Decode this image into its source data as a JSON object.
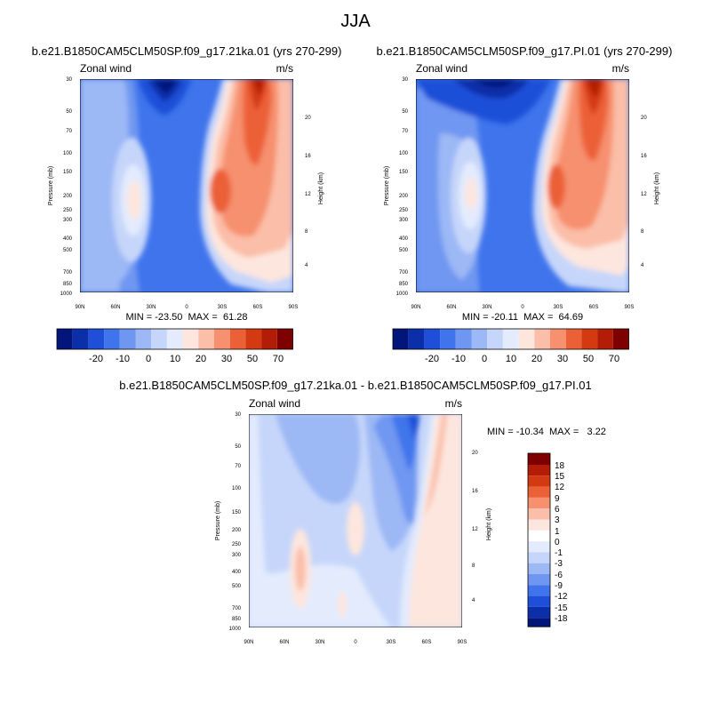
{
  "figure": {
    "title": "JJA"
  },
  "chart_data": [
    {
      "type": "contour",
      "title": "b.e21.B1850CAM5CLM50SP.f09_g17.21ka.01 (yrs 270-299)",
      "left_label": "Zonal wind",
      "right_label": "m/s",
      "ylabel": "Pressure (mb)",
      "ylabel_right": "Height (km)",
      "x_ticks": [
        "90N",
        "60N",
        "30N",
        "0",
        "30S",
        "60S",
        "90S"
      ],
      "y_ticks": [
        "30",
        "50",
        "70",
        "100",
        "150",
        "200",
        "250",
        "300",
        "400",
        "500",
        "700",
        "850",
        "1000"
      ],
      "height_ticks": [
        "4",
        "8",
        "12",
        "16",
        "20"
      ],
      "stats": "MIN = -23.50  MAX =  61.28",
      "stats_min": -23.5,
      "stats_max": 61.28,
      "colorbar_labels": [
        "-20",
        "-10",
        "0",
        "10",
        "20",
        "30",
        "50",
        "70"
      ],
      "jets": [
        {
          "lat": -52,
          "pressure": 40,
          "value": 61
        },
        {
          "lat": -30,
          "pressure": 200,
          "value": 45
        },
        {
          "lat": 45,
          "pressure": 200,
          "value": 20
        }
      ]
    },
    {
      "type": "contour",
      "title": "b.e21.B1850CAM5CLM50SP.f09_g17.PI.01 (yrs 270-299)",
      "left_label": "Zonal wind",
      "right_label": "m/s",
      "ylabel": "Pressure (mb)",
      "ylabel_right": "Height (km)",
      "x_ticks": [
        "90N",
        "60N",
        "30N",
        "0",
        "30S",
        "60S",
        "90S"
      ],
      "y_ticks": [
        "30",
        "50",
        "70",
        "100",
        "150",
        "200",
        "250",
        "300",
        "400",
        "500",
        "700",
        "850",
        "1000"
      ],
      "height_ticks": [
        "4",
        "8",
        "12",
        "16",
        "20"
      ],
      "stats": "MIN = -20.11  MAX =  64.69",
      "stats_min": -20.11,
      "stats_max": 64.69,
      "colorbar_labels": [
        "-20",
        "-10",
        "0",
        "10",
        "20",
        "30",
        "50",
        "70"
      ],
      "jets": [
        {
          "lat": -55,
          "pressure": 35,
          "value": 64
        },
        {
          "lat": -30,
          "pressure": 200,
          "value": 40
        },
        {
          "lat": 45,
          "pressure": 200,
          "value": 20
        }
      ]
    },
    {
      "type": "contour",
      "title": "b.e21.B1850CAM5CLM50SP.f09_g17.21ka.01 - b.e21.B1850CAM5CLM50SP.f09_g17.PI.01",
      "left_label": "Zonal wind",
      "right_label": "m/s",
      "ylabel": "Pressure (mb)",
      "ylabel_right": "Height (km)",
      "x_ticks": [
        "90N",
        "60N",
        "30N",
        "0",
        "30S",
        "60S",
        "90S"
      ],
      "y_ticks": [
        "30",
        "50",
        "70",
        "100",
        "150",
        "200",
        "250",
        "300",
        "400",
        "500",
        "700",
        "850",
        "1000"
      ],
      "height_ticks": [
        "4",
        "8",
        "12",
        "16",
        "20"
      ],
      "stats": "MIN = -10.34  MAX =   3.22",
      "stats_min": -10.34,
      "stats_max": 3.22,
      "colorbar_labels": [
        "18",
        "15",
        "12",
        "9",
        "6",
        "3",
        "1",
        "0",
        "-1",
        "-3",
        "-6",
        "-9",
        "-12",
        "-15",
        "-18"
      ]
    }
  ]
}
